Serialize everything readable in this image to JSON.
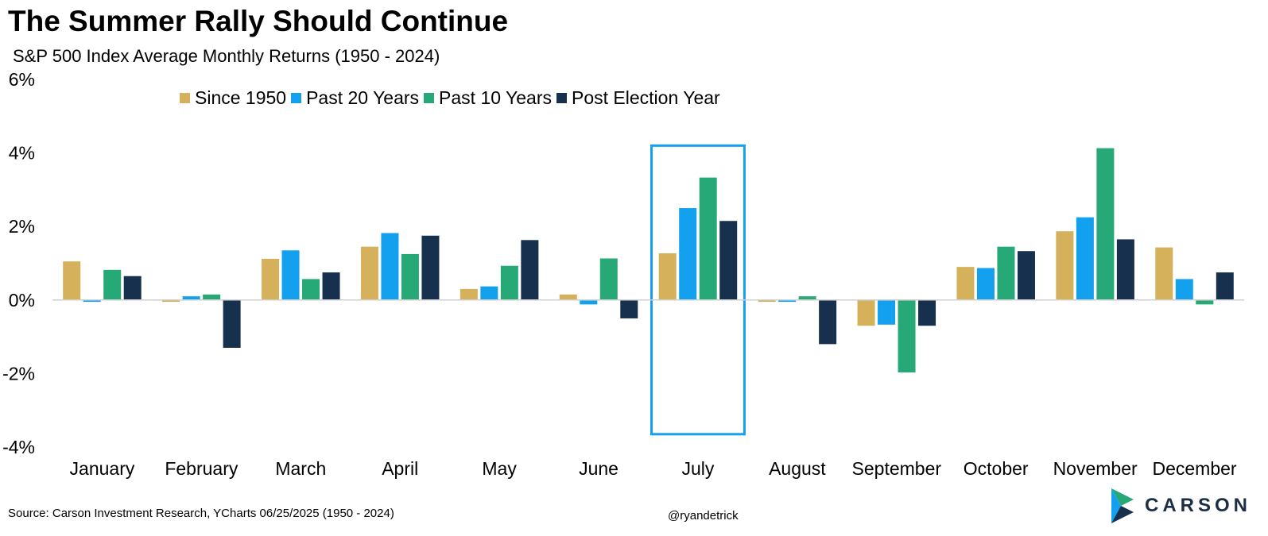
{
  "chart_data": {
    "type": "bar",
    "title": "The Summer Rally Should Continue",
    "subtitle": "S&P 500 Index Average Monthly Returns (1950 - 2024)",
    "categories": [
      "January",
      "February",
      "March",
      "April",
      "May",
      "June",
      "July",
      "August",
      "September",
      "October",
      "November",
      "December"
    ],
    "series": [
      {
        "name": "Since 1950",
        "color": "#d4b15a",
        "values": [
          1.05,
          -0.05,
          1.12,
          1.45,
          0.3,
          0.15,
          1.27,
          -0.05,
          -0.7,
          0.9,
          1.87,
          1.43
        ]
      },
      {
        "name": "Past 20 Years",
        "color": "#13a1ef",
        "values": [
          -0.05,
          0.1,
          1.35,
          1.82,
          0.37,
          -0.12,
          2.5,
          -0.05,
          -0.67,
          0.87,
          2.25,
          0.57
        ]
      },
      {
        "name": "Past 10 Years",
        "color": "#27a877",
        "values": [
          0.82,
          0.15,
          0.57,
          1.25,
          0.93,
          1.13,
          3.33,
          0.1,
          -1.97,
          1.45,
          4.13,
          -0.12
        ]
      },
      {
        "name": "Post Election Year",
        "color": "#17304d",
        "values": [
          0.65,
          -1.3,
          0.75,
          1.75,
          1.63,
          -0.5,
          2.15,
          -1.2,
          -0.7,
          1.33,
          1.65,
          0.75
        ]
      }
    ],
    "yticks": [
      "6%",
      "4%",
      "2%",
      "0%",
      "-2%",
      "-4%"
    ],
    "ylim": [
      -4,
      6
    ],
    "highlight": {
      "category": "July",
      "color": "#13a1ef"
    },
    "grid": false,
    "legend_position": "top-center"
  },
  "source": "Source: Carson Investment Research, YCharts 06/25/2025 (1950 - 2024)",
  "handle": "@ryandetrick",
  "logo_text": "CARSON"
}
